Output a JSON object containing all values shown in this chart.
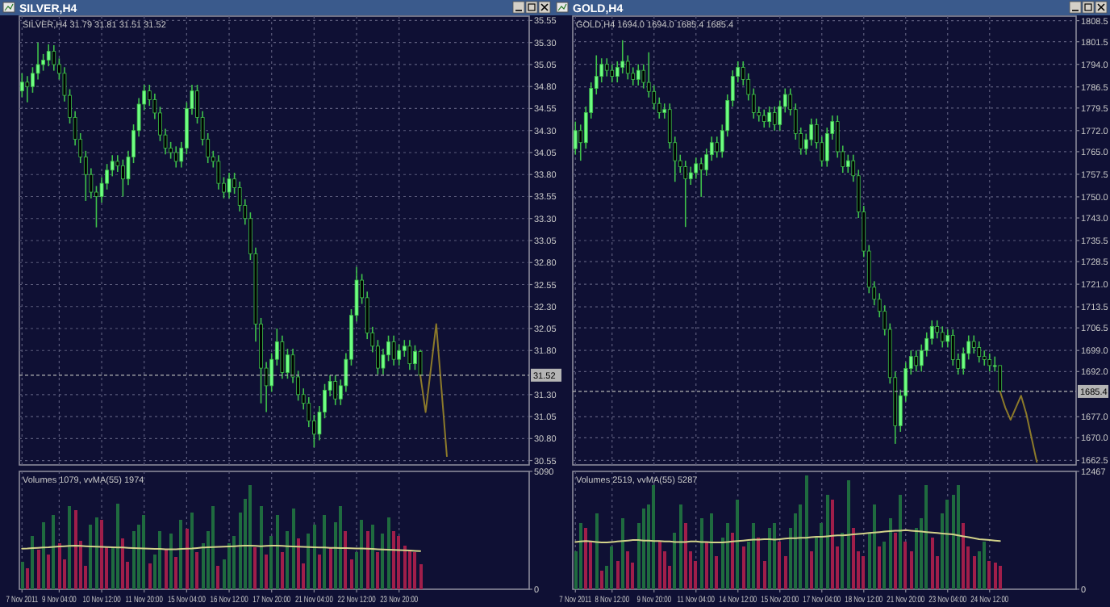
{
  "chart_data": [
    {
      "type": "candlestick",
      "title": "SILVER,H4",
      "subtitle": "SILVER,H4 31.79 31.81 31.51 31.52",
      "color": "#3fc24a",
      "grid": true,
      "tick_labels": "y",
      "categories": [
        null,
        null,
        null,
        null,
        null,
        null,
        null,
        null,
        null,
        null,
        null,
        null,
        null,
        null,
        null,
        null,
        null,
        null,
        null,
        null,
        null,
        null,
        null,
        null,
        null,
        null,
        null,
        null,
        null,
        null,
        null,
        null,
        null,
        null,
        null,
        null,
        null,
        null,
        null,
        null,
        null,
        null,
        null,
        null,
        null,
        null,
        null,
        null,
        null,
        null,
        null,
        null,
        null,
        null,
        null,
        null,
        null,
        null,
        null,
        null,
        null,
        null,
        null,
        null,
        null,
        null,
        null,
        null,
        null,
        null,
        null,
        null,
        null,
        null,
        null,
        null,
        null,
        null,
        null,
        null,
        null,
        null,
        null,
        null,
        null,
        null,
        null,
        null,
        null,
        null,
        null,
        null,
        null,
        null,
        null,
        null
      ],
      "ylim": [
        30.5,
        35.6
      ],
      "yticks": [
        {
          "value": 30.55,
          "label": "30.55"
        },
        {
          "value": 30.8,
          "label": "30.80"
        },
        {
          "value": 31.05,
          "label": "31.05"
        },
        {
          "value": 31.3,
          "label": "31.30"
        },
        {
          "value": 31.8,
          "label": "31.80"
        },
        {
          "value": 32.05,
          "label": "32.05"
        },
        {
          "value": 32.3,
          "label": "32.30"
        },
        {
          "value": 32.55,
          "label": "32.55"
        },
        {
          "value": 32.8,
          "label": "32.80"
        },
        {
          "value": 33.05,
          "label": "33.05"
        },
        {
          "value": 33.3,
          "label": "33.30"
        },
        {
          "value": 33.55,
          "label": "33.55"
        },
        {
          "value": 33.8,
          "label": "33.80"
        },
        {
          "value": 34.05,
          "label": "34.05"
        },
        {
          "value": 34.3,
          "label": "34.30"
        },
        {
          "value": 34.55,
          "label": "34.55"
        },
        {
          "value": 34.8,
          "label": "34.80"
        },
        {
          "value": 35.05,
          "label": "35.05"
        },
        {
          "value": 35.3,
          "label": "35.30"
        },
        {
          "value": 35.55,
          "label": "35.55"
        }
      ],
      "ref_lines": [
        {
          "axis": "y",
          "value": 31.52,
          "label": "31.52",
          "color": "#b4b4b4"
        }
      ],
      "ohlc": [
        [
          34.75,
          34.95,
          34.68,
          34.85
        ],
        [
          34.85,
          34.92,
          34.62,
          34.8
        ],
        [
          34.8,
          35.02,
          34.73,
          34.95
        ],
        [
          34.95,
          35.3,
          34.88,
          35.05
        ],
        [
          35.05,
          35.17,
          34.98,
          35.1
        ],
        [
          35.1,
          35.28,
          35.03,
          35.2
        ],
        [
          35.2,
          35.27,
          34.98,
          35.05
        ],
        [
          35.05,
          35.12,
          34.88,
          34.95
        ],
        [
          34.95,
          35.02,
          34.63,
          34.7
        ],
        [
          34.7,
          34.77,
          34.38,
          34.45
        ],
        [
          34.45,
          34.52,
          34.13,
          34.2
        ],
        [
          34.2,
          34.27,
          33.93,
          34.0
        ],
        [
          34.0,
          34.07,
          33.5,
          33.8
        ],
        [
          33.8,
          33.87,
          33.53,
          33.6
        ],
        [
          33.6,
          33.67,
          33.2,
          33.55
        ],
        [
          33.55,
          33.77,
          33.48,
          33.7
        ],
        [
          33.7,
          33.92,
          33.63,
          33.85
        ],
        [
          33.85,
          34.02,
          33.78,
          33.95
        ],
        [
          33.95,
          34.02,
          33.83,
          33.9
        ],
        [
          33.9,
          33.97,
          33.55,
          33.75
        ],
        [
          33.75,
          34.07,
          33.68,
          34.0
        ],
        [
          34.0,
          34.37,
          33.93,
          34.3
        ],
        [
          34.3,
          34.67,
          34.23,
          34.6
        ],
        [
          34.6,
          34.82,
          34.53,
          34.75
        ],
        [
          34.75,
          34.82,
          34.58,
          34.65
        ],
        [
          34.65,
          34.72,
          34.43,
          34.5
        ],
        [
          34.5,
          34.57,
          34.18,
          34.25
        ],
        [
          34.25,
          34.32,
          34.03,
          34.1
        ],
        [
          34.1,
          34.17,
          33.98,
          34.05
        ],
        [
          34.05,
          34.12,
          33.88,
          33.95
        ],
        [
          33.95,
          34.17,
          33.88,
          34.1
        ],
        [
          34.1,
          34.62,
          34.03,
          34.55
        ],
        [
          34.55,
          34.82,
          34.48,
          34.75
        ],
        [
          34.75,
          34.82,
          34.38,
          34.45
        ],
        [
          34.45,
          34.52,
          34.13,
          34.2
        ],
        [
          34.2,
          34.27,
          33.93,
          34.0
        ],
        [
          34.0,
          34.07,
          33.88,
          33.95
        ],
        [
          33.95,
          34.02,
          33.63,
          33.7
        ],
        [
          33.7,
          33.77,
          33.53,
          33.6
        ],
        [
          33.6,
          33.82,
          33.53,
          33.75
        ],
        [
          33.75,
          33.82,
          33.58,
          33.65
        ],
        [
          33.65,
          33.72,
          33.38,
          33.45
        ],
        [
          33.45,
          33.52,
          33.23,
          33.3
        ],
        [
          33.3,
          33.37,
          32.83,
          32.9
        ],
        [
          32.9,
          32.97,
          31.9,
          32.1
        ],
        [
          32.1,
          32.17,
          31.2,
          31.6
        ],
        [
          31.6,
          31.67,
          31.1,
          31.4
        ],
        [
          31.4,
          31.77,
          31.33,
          31.7
        ],
        [
          31.7,
          32.05,
          31.63,
          31.9
        ],
        [
          31.9,
          31.97,
          31.48,
          31.55
        ],
        [
          31.55,
          31.82,
          31.48,
          31.75
        ],
        [
          31.75,
          31.82,
          31.43,
          31.5
        ],
        [
          31.5,
          31.57,
          31.23,
          31.3
        ],
        [
          31.3,
          31.37,
          31.13,
          31.2
        ],
        [
          31.2,
          31.27,
          30.93,
          31.0
        ],
        [
          31.0,
          31.07,
          30.7,
          30.85
        ],
        [
          30.85,
          31.17,
          30.78,
          31.1
        ],
        [
          31.1,
          31.42,
          31.03,
          31.35
        ],
        [
          31.35,
          31.52,
          31.28,
          31.45
        ],
        [
          31.45,
          31.52,
          31.18,
          31.25
        ],
        [
          31.25,
          31.47,
          31.18,
          31.4
        ],
        [
          31.4,
          31.77,
          31.33,
          31.7
        ],
        [
          31.7,
          32.27,
          31.63,
          32.2
        ],
        [
          32.2,
          32.75,
          32.13,
          32.6
        ],
        [
          32.6,
          32.67,
          32.33,
          32.4
        ],
        [
          32.4,
          32.47,
          31.93,
          32.0
        ],
        [
          32.0,
          32.07,
          31.78,
          31.85
        ],
        [
          31.85,
          31.92,
          31.53,
          31.6
        ],
        [
          31.6,
          31.82,
          31.53,
          31.75
        ],
        [
          31.75,
          31.97,
          31.68,
          31.9
        ],
        [
          31.9,
          31.97,
          31.63,
          31.7
        ],
        [
          31.7,
          31.87,
          31.63,
          31.8
        ],
        [
          31.8,
          31.92,
          31.73,
          31.85
        ],
        [
          31.85,
          31.92,
          31.58,
          31.65
        ],
        [
          31.65,
          31.86,
          31.58,
          31.79
        ],
        [
          31.79,
          31.81,
          31.51,
          31.52
        ],
        null,
        null,
        null,
        null,
        null,
        null,
        null,
        null,
        null,
        null,
        null,
        null,
        null,
        null,
        null,
        null,
        null,
        null,
        null,
        null
      ],
      "series": [
        {
          "type": "line",
          "color": "#8c7a2a",
          "values": [
            null,
            null,
            null,
            null,
            null,
            null,
            null,
            null,
            null,
            null,
            null,
            null,
            null,
            null,
            null,
            null,
            null,
            null,
            null,
            null,
            null,
            null,
            null,
            null,
            null,
            null,
            null,
            null,
            null,
            null,
            null,
            null,
            null,
            null,
            null,
            null,
            null,
            null,
            null,
            null,
            null,
            null,
            null,
            null,
            null,
            null,
            null,
            null,
            null,
            null,
            null,
            null,
            null,
            null,
            null,
            null,
            null,
            null,
            null,
            null,
            null,
            null,
            null,
            null,
            null,
            null,
            null,
            null,
            null,
            null,
            null,
            null,
            null,
            null,
            null,
            31.52,
            31.1,
            31.6,
            32.1,
            31.35,
            30.6,
            null,
            null,
            null,
            null,
            null,
            null,
            null,
            null,
            null,
            null,
            null,
            null,
            null,
            null,
            null
          ]
        }
      ]
    },
    {
      "type": "candlestick",
      "title": "GOLD,H4",
      "subtitle": "GOLD,H4 1694.0 1694.0 1685.4 1685.4",
      "color": "#3fc24a",
      "grid": true,
      "tick_labels": "y",
      "categories": [
        null,
        null,
        null,
        null,
        null,
        null,
        null,
        null,
        null,
        null,
        null,
        null,
        null,
        null,
        null,
        null,
        null,
        null,
        null,
        null,
        null,
        null,
        null,
        null,
        null,
        null,
        null,
        null,
        null,
        null,
        null,
        null,
        null,
        null,
        null,
        null,
        null,
        null,
        null,
        null,
        null,
        null,
        null,
        null,
        null,
        null,
        null,
        null,
        null,
        null,
        null,
        null,
        null,
        null,
        null,
        null,
        null,
        null,
        null,
        null,
        null,
        null,
        null,
        null,
        null,
        null,
        null,
        null,
        null,
        null,
        null,
        null,
        null,
        null,
        null,
        null,
        null,
        null,
        null,
        null,
        null,
        null,
        null,
        null,
        null,
        null,
        null,
        null,
        null,
        null,
        null,
        null,
        null,
        null,
        null,
        null
      ],
      "ylim": [
        1661,
        1810
      ],
      "yticks": [
        {
          "value": 1662.5,
          "label": "1662.5"
        },
        {
          "value": 1670,
          "label": "1670.0"
        },
        {
          "value": 1677,
          "label": "1677.0"
        },
        {
          "value": 1692,
          "label": "1692.0"
        },
        {
          "value": 1699,
          "label": "1699.0"
        },
        {
          "value": 1706.5,
          "label": "1706.5"
        },
        {
          "value": 1713.5,
          "label": "1713.5"
        },
        {
          "value": 1721,
          "label": "1721.0"
        },
        {
          "value": 1728.5,
          "label": "1728.5"
        },
        {
          "value": 1735.5,
          "label": "1735.5"
        },
        {
          "value": 1743,
          "label": "1743.0"
        },
        {
          "value": 1750,
          "label": "1750.0"
        },
        {
          "value": 1757.5,
          "label": "1757.5"
        },
        {
          "value": 1765,
          "label": "1765.0"
        },
        {
          "value": 1772,
          "label": "1772.0"
        },
        {
          "value": 1779.5,
          "label": "1779.5"
        },
        {
          "value": 1786.5,
          "label": "1786.5"
        },
        {
          "value": 1794,
          "label": "1794.0"
        },
        {
          "value": 1801.5,
          "label": "1801.5"
        },
        {
          "value": 1808.5,
          "label": "1808.5"
        }
      ],
      "ref_lines": [
        {
          "axis": "y",
          "value": 1685.4,
          "label": "1685.4",
          "color": "#b4b4b4"
        }
      ],
      "ohlc": [
        [
          1766,
          1775,
          1764,
          1772
        ],
        [
          1772,
          1774,
          1762,
          1768
        ],
        [
          1768,
          1780,
          1766,
          1778
        ],
        [
          1778,
          1788,
          1776,
          1786
        ],
        [
          1786,
          1797,
          1784,
          1790
        ],
        [
          1790,
          1796,
          1788,
          1794
        ],
        [
          1794,
          1796,
          1790,
          1792
        ],
        [
          1792,
          1794,
          1788,
          1790
        ],
        [
          1790,
          1795,
          1788,
          1793
        ],
        [
          1793,
          1802,
          1791,
          1795
        ],
        [
          1795,
          1797,
          1789,
          1791
        ],
        [
          1791,
          1793,
          1787,
          1789
        ],
        [
          1789,
          1794,
          1787,
          1792
        ],
        [
          1792,
          1794,
          1786,
          1788
        ],
        [
          1788,
          1798,
          1783,
          1785
        ],
        [
          1785,
          1787,
          1779,
          1781
        ],
        [
          1781,
          1783,
          1776,
          1778
        ],
        [
          1778,
          1781,
          1776,
          1779
        ],
        [
          1779,
          1781,
          1766,
          1768
        ],
        [
          1768,
          1770,
          1755,
          1762
        ],
        [
          1762,
          1764,
          1758,
          1760
        ],
        [
          1760,
          1762,
          1740,
          1756
        ],
        [
          1756,
          1760,
          1754,
          1758
        ],
        [
          1758,
          1763,
          1756,
          1761
        ],
        [
          1761,
          1763,
          1750,
          1759
        ],
        [
          1759,
          1766,
          1757,
          1764
        ],
        [
          1764,
          1770,
          1762,
          1768
        ],
        [
          1768,
          1770,
          1763,
          1765
        ],
        [
          1765,
          1774,
          1763,
          1772
        ],
        [
          1772,
          1784,
          1770,
          1782
        ],
        [
          1782,
          1792,
          1780,
          1790
        ],
        [
          1790,
          1795,
          1788,
          1793
        ],
        [
          1793,
          1795,
          1787,
          1789
        ],
        [
          1789,
          1791,
          1782,
          1784
        ],
        [
          1784,
          1786,
          1776,
          1778
        ],
        [
          1778,
          1780,
          1775,
          1777
        ],
        [
          1777,
          1779,
          1773,
          1775
        ],
        [
          1775,
          1780,
          1773,
          1778
        ],
        [
          1778,
          1780,
          1772,
          1774
        ],
        [
          1774,
          1782,
          1772,
          1780
        ],
        [
          1780,
          1786,
          1778,
          1784
        ],
        [
          1784,
          1786,
          1777,
          1779
        ],
        [
          1779,
          1781,
          1769,
          1771
        ],
        [
          1771,
          1773,
          1764,
          1766
        ],
        [
          1766,
          1771,
          1764,
          1769
        ],
        [
          1769,
          1776,
          1767,
          1774
        ],
        [
          1774,
          1776,
          1766,
          1768
        ],
        [
          1768,
          1770,
          1760,
          1762
        ],
        [
          1762,
          1773,
          1760,
          1771
        ],
        [
          1771,
          1777,
          1769,
          1775
        ],
        [
          1775,
          1777,
          1763,
          1765
        ],
        [
          1765,
          1767,
          1758,
          1760
        ],
        [
          1760,
          1764,
          1758,
          1762
        ],
        [
          1762,
          1764,
          1755,
          1757
        ],
        [
          1757,
          1759,
          1743,
          1745
        ],
        [
          1745,
          1747,
          1730,
          1732
        ],
        [
          1732,
          1734,
          1718,
          1720
        ],
        [
          1720,
          1722,
          1714,
          1716
        ],
        [
          1716,
          1718,
          1710,
          1712
        ],
        [
          1712,
          1714,
          1704,
          1706
        ],
        [
          1706,
          1708,
          1688,
          1690
        ],
        [
          1690,
          1692,
          1668,
          1674
        ],
        [
          1674,
          1686,
          1672,
          1684
        ],
        [
          1684,
          1695,
          1682,
          1693
        ],
        [
          1693,
          1699,
          1691,
          1697
        ],
        [
          1697,
          1699,
          1692,
          1694
        ],
        [
          1694,
          1701,
          1692,
          1699
        ],
        [
          1699,
          1705,
          1697,
          1703
        ],
        [
          1703,
          1709,
          1701,
          1707
        ],
        [
          1707,
          1709,
          1703,
          1705
        ],
        [
          1705,
          1707,
          1700,
          1702
        ],
        [
          1702,
          1706,
          1700,
          1704
        ],
        [
          1704,
          1706,
          1694,
          1696
        ],
        [
          1696,
          1698,
          1691,
          1693
        ],
        [
          1693,
          1700,
          1691,
          1698
        ],
        [
          1698,
          1704,
          1696,
          1702
        ],
        [
          1702,
          1704,
          1698,
          1700
        ],
        [
          1700,
          1702,
          1695,
          1697
        ],
        [
          1697,
          1699,
          1694,
          1696
        ],
        [
          1696,
          1698,
          1692,
          1694
        ],
        [
          1694,
          1697,
          1692,
          1694
        ],
        [
          1694.0,
          1694.0,
          1685.4,
          1685.4
        ],
        null,
        null,
        null,
        null,
        null,
        null,
        null,
        null,
        null,
        null,
        null,
        null,
        null,
        null
      ],
      "series": [
        {
          "type": "line",
          "color": "#8c7a2a",
          "values": [
            null,
            null,
            null,
            null,
            null,
            null,
            null,
            null,
            null,
            null,
            null,
            null,
            null,
            null,
            null,
            null,
            null,
            null,
            null,
            null,
            null,
            null,
            null,
            null,
            null,
            null,
            null,
            null,
            null,
            null,
            null,
            null,
            null,
            null,
            null,
            null,
            null,
            null,
            null,
            null,
            null,
            null,
            null,
            null,
            null,
            null,
            null,
            null,
            null,
            null,
            null,
            null,
            null,
            null,
            null,
            null,
            null,
            null,
            null,
            null,
            null,
            null,
            null,
            null,
            null,
            null,
            null,
            null,
            null,
            null,
            null,
            null,
            null,
            null,
            null,
            null,
            null,
            null,
            null,
            null,
            null,
            1685.4,
            1680,
            1676,
            1680,
            1684,
            1678,
            1670,
            1662,
            null,
            null,
            null,
            null,
            null,
            null,
            null
          ]
        }
      ]
    },
    {
      "type": "bar",
      "title": "Volumes 1079, vvMA(55) 1974",
      "grid": "x",
      "categories": [
        "7 Nov 2011",
        null,
        null,
        null,
        null,
        null,
        null,
        "9 Nov 04:00",
        null,
        null,
        null,
        null,
        null,
        null,
        null,
        "10 Nov 12:00",
        null,
        null,
        null,
        null,
        null,
        null,
        null,
        "11 Nov 20:00",
        null,
        null,
        null,
        null,
        null,
        null,
        null,
        "15 Nov 04:00",
        null,
        null,
        null,
        null,
        null,
        null,
        null,
        "16 Nov 12:00",
        null,
        null,
        null,
        null,
        null,
        null,
        null,
        "17 Nov 20:00",
        null,
        null,
        null,
        null,
        null,
        null,
        null,
        "21 Nov 04:00",
        null,
        null,
        null,
        null,
        null,
        null,
        null,
        "22 Nov 12:00",
        null,
        null,
        null,
        null,
        null,
        null,
        null,
        "23 Nov 20:00",
        null,
        null,
        null,
        null,
        null,
        null,
        null,
        null,
        null,
        null,
        null,
        null,
        null,
        null,
        null,
        null,
        null,
        null,
        null,
        null,
        null,
        null,
        null,
        null
      ],
      "ylim": [
        0,
        5090
      ],
      "yticks": [
        0,
        5090
      ],
      "series": [
        {
          "type": "bar",
          "values": [
            1200,
            900,
            2300,
            1700,
            2900,
            1500,
            3200,
            2000,
            1300,
            3600,
            3400,
            2100,
            1000,
            2800,
            3100,
            3000,
            1800,
            1800,
            3700,
            2200,
            1200,
            2500,
            2800,
            3200,
            1100,
            1500,
            2500,
            1700,
            2400,
            1400,
            3000,
            2600,
            3300,
            1600,
            2000,
            2500,
            3600,
            1000,
            1300,
            2000,
            2300,
            3300,
            3900,
            4500,
            1800,
            3600,
            1500,
            2300,
            3200,
            1600,
            2500,
            3500,
            2200,
            1100,
            2400,
            2800,
            1500,
            3200,
            1800,
            2900,
            3600,
            2500,
            1300,
            1600,
            3000,
            2500,
            2800,
            1600,
            2400,
            3100,
            2500,
            2300,
            1900,
            1700,
            1600,
            1079,
            null,
            null,
            null,
            null,
            null,
            null,
            null,
            null,
            null,
            null,
            null,
            null,
            null,
            null,
            null,
            null,
            null,
            null,
            null,
            null
          ],
          "colors": [
            "#1f6b3f",
            "#a01e4a",
            "#1f6b3f",
            "#a01e4a",
            "#1f6b3f",
            "#a01e4a",
            "#1f6b3f",
            "#a01e4a",
            "#a01e4a",
            "#1f6b3f",
            "#a01e4a",
            "#a01e4a",
            "#a01e4a",
            "#1f6b3f",
            "#1f6b3f",
            "#a01e4a",
            "#a01e4a",
            "#1f6b3f",
            "#1f6b3f",
            "#a01e4a",
            "#a01e4a",
            "#1f6b3f",
            "#1f6b3f",
            "#1f6b3f",
            "#a01e4a",
            "#1f6b3f",
            "#1f6b3f",
            "#a01e4a",
            "#1f6b3f",
            "#a01e4a",
            "#1f6b3f",
            "#a01e4a",
            "#1f6b3f",
            "#a01e4a",
            "#1f6b3f",
            "#1f6b3f",
            "#1f6b3f",
            "#a01e4a",
            "#1f6b3f",
            "#1f6b3f",
            "#1f6b3f",
            "#1f6b3f",
            "#1f6b3f",
            "#1f6b3f",
            "#a01e4a",
            "#1f6b3f",
            "#a01e4a",
            "#1f6b3f",
            "#1f6b3f",
            "#a01e4a",
            "#1f6b3f",
            "#1f6b3f",
            "#a01e4a",
            "#a01e4a",
            "#1f6b3f",
            "#1f6b3f",
            "#a01e4a",
            "#1f6b3f",
            "#a01e4a",
            "#1f6b3f",
            "#1f6b3f",
            "#a01e4a",
            "#a01e4a",
            "#1f6b3f",
            "#1f6b3f",
            "#a01e4a",
            "#1f6b3f",
            "#a01e4a",
            "#1f6b3f",
            "#1f6b3f",
            "#a01e4a",
            "#a01e4a",
            "#a01e4a",
            "#a01e4a",
            "#a01e4a",
            "#a01e4a",
            null,
            null,
            null,
            null,
            null,
            null,
            null,
            null,
            null,
            null,
            null,
            null,
            null,
            null,
            null,
            null,
            null,
            null,
            null,
            null
          ]
        },
        {
          "type": "line",
          "color": "#d2d28a",
          "values": [
            1750,
            1760,
            1780,
            1790,
            1800,
            1810,
            1830,
            1850,
            1860,
            1870,
            1880,
            1870,
            1860,
            1850,
            1840,
            1830,
            1820,
            1810,
            1800,
            1800,
            1790,
            1780,
            1770,
            1760,
            1750,
            1740,
            1740,
            1730,
            1730,
            1730,
            1740,
            1750,
            1760,
            1780,
            1800,
            1810,
            1820,
            1830,
            1840,
            1850,
            1860,
            1870,
            1880,
            1880,
            1870,
            1860,
            1870,
            1880,
            1880,
            1870,
            1860,
            1850,
            1840,
            1830,
            1820,
            1810,
            1800,
            1800,
            1790,
            1790,
            1780,
            1780,
            1770,
            1760,
            1760,
            1750,
            1740,
            1730,
            1720,
            1710,
            1700,
            1690,
            1680,
            1670,
            1660,
            1650,
            null,
            null,
            null,
            null,
            null,
            null,
            null,
            null,
            null,
            null,
            null,
            null,
            null,
            null,
            null,
            null,
            null,
            null,
            null,
            null
          ]
        }
      ]
    },
    {
      "type": "bar",
      "title": "Volumes 2519, vvMA(55) 5287",
      "grid": "x",
      "categories": [
        "7 Nov 2011",
        null,
        null,
        null,
        null,
        null,
        null,
        "8 Nov 12:00",
        null,
        null,
        null,
        null,
        null,
        null,
        null,
        "9 Nov 20:00",
        null,
        null,
        null,
        null,
        null,
        null,
        null,
        "11 Nov 04:00",
        null,
        null,
        null,
        null,
        null,
        null,
        null,
        "14 Nov 12:00",
        null,
        null,
        null,
        null,
        null,
        null,
        null,
        "15 Nov 20:00",
        null,
        null,
        null,
        null,
        null,
        null,
        null,
        "17 Nov 04:00",
        null,
        null,
        null,
        null,
        null,
        null,
        null,
        "18 Nov 12:00",
        null,
        null,
        null,
        null,
        null,
        null,
        null,
        "21 Nov 20:00",
        null,
        null,
        null,
        null,
        null,
        null,
        null,
        "23 Nov 04:00",
        null,
        null,
        null,
        null,
        null,
        null,
        null,
        "24 Nov 12:00",
        null,
        null,
        null,
        null,
        null,
        null,
        null,
        null,
        null,
        null,
        null,
        null,
        null,
        null,
        null,
        null
      ],
      "ylim": [
        0,
        12467
      ],
      "yticks": [
        0,
        12467
      ],
      "series": [
        {
          "type": "bar",
          "values": [
            4000,
            7000,
            6500,
            5000,
            8000,
            2000,
            2500,
            4500,
            3000,
            7500,
            4000,
            2800,
            7000,
            8500,
            9000,
            11000,
            5000,
            4000,
            2500,
            6000,
            9000,
            7000,
            4000,
            3000,
            7500,
            5000,
            8000,
            3500,
            5500,
            7000,
            6000,
            9500,
            4500,
            5000,
            7000,
            5500,
            3000,
            6500,
            7000,
            5000,
            3500,
            6500,
            8000,
            9000,
            12000,
            4000,
            5500,
            7000,
            10000,
            9500,
            4500,
            6000,
            11500,
            6500,
            4000,
            3500,
            6000,
            9000,
            4500,
            5000,
            7500,
            6000,
            10000,
            5000,
            4000,
            6500,
            7500,
            11000,
            5500,
            3500,
            8000,
            9500,
            10000,
            11000,
            7000,
            4500,
            3500,
            4000,
            5000,
            3000,
            2800,
            2519,
            null,
            null,
            null,
            null,
            null,
            null,
            null,
            null,
            null,
            null,
            null,
            null,
            null,
            null
          ],
          "colors": [
            "#1f6b3f",
            "#1f6b3f",
            "#a01e4a",
            "#a01e4a",
            "#1f6b3f",
            "#a01e4a",
            "#1f6b3f",
            "#1f6b3f",
            "#a01e4a",
            "#1f6b3f",
            "#a01e4a",
            "#a01e4a",
            "#1f6b3f",
            "#1f6b3f",
            "#1f6b3f",
            "#1f6b3f",
            "#a01e4a",
            "#a01e4a",
            "#a01e4a",
            "#1f6b3f",
            "#1f6b3f",
            "#a01e4a",
            "#a01e4a",
            "#a01e4a",
            "#1f6b3f",
            "#a01e4a",
            "#1f6b3f",
            "#a01e4a",
            "#1f6b3f",
            "#1f6b3f",
            "#a01e4a",
            "#1f6b3f",
            "#a01e4a",
            "#1f6b3f",
            "#1f6b3f",
            "#a01e4a",
            "#a01e4a",
            "#1f6b3f",
            "#1f6b3f",
            "#a01e4a",
            "#a01e4a",
            "#1f6b3f",
            "#1f6b3f",
            "#1f6b3f",
            "#1f6b3f",
            "#a01e4a",
            "#1f6b3f",
            "#1f6b3f",
            "#1f6b3f",
            "#a01e4a",
            "#a01e4a",
            "#1f6b3f",
            "#1f6b3f",
            "#a01e4a",
            "#a01e4a",
            "#a01e4a",
            "#1f6b3f",
            "#1f6b3f",
            "#a01e4a",
            "#1f6b3f",
            "#1f6b3f",
            "#a01e4a",
            "#1f6b3f",
            "#a01e4a",
            "#a01e4a",
            "#1f6b3f",
            "#1f6b3f",
            "#1f6b3f",
            "#a01e4a",
            "#a01e4a",
            "#1f6b3f",
            "#1f6b3f",
            "#1f6b3f",
            "#1f6b3f",
            "#a01e4a",
            "#a01e4a",
            "#a01e4a",
            "#1f6b3f",
            "#1f6b3f",
            "#a01e4a",
            "#a01e4a",
            "#a01e4a",
            null,
            null,
            null,
            null,
            null,
            null,
            null,
            null,
            null,
            null,
            null,
            null,
            null,
            null
          ]
        },
        {
          "type": "line",
          "color": "#d2d28a",
          "values": [
            5000,
            5050,
            5100,
            5050,
            5000,
            4950,
            4950,
            5000,
            5050,
            5100,
            5150,
            5200,
            5200,
            5150,
            5150,
            5100,
            5100,
            5050,
            5050,
            5000,
            5000,
            5000,
            5050,
            5050,
            5000,
            5000,
            4950,
            4950,
            4950,
            5000,
            5050,
            5100,
            5150,
            5200,
            5250,
            5250,
            5300,
            5300,
            5250,
            5300,
            5350,
            5400,
            5400,
            5450,
            5450,
            5500,
            5550,
            5550,
            5600,
            5650,
            5700,
            5700,
            5750,
            5800,
            5850,
            5900,
            5950,
            6000,
            6050,
            6100,
            6150,
            6200,
            6200,
            6250,
            6200,
            6150,
            6100,
            6050,
            6000,
            5950,
            5900,
            5850,
            5800,
            5700,
            5600,
            5500,
            5400,
            5300,
            5250,
            5200,
            5150,
            5100,
            null,
            null,
            null,
            null,
            null,
            null,
            null,
            null,
            null,
            null,
            null,
            null,
            null,
            null
          ]
        }
      ]
    }
  ]
}
